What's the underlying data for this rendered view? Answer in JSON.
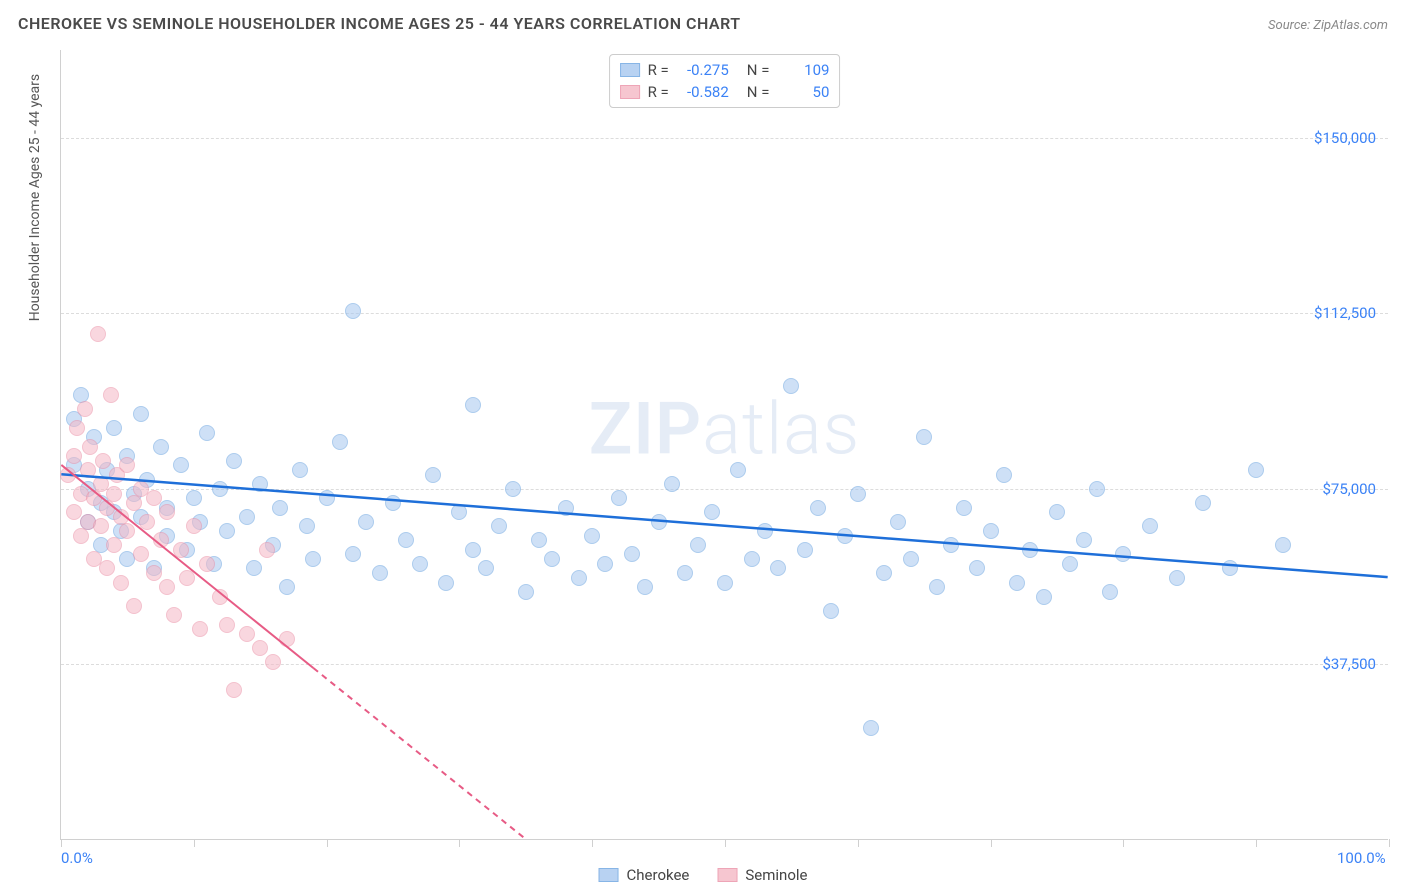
{
  "title": "CHEROKEE VS SEMINOLE HOUSEHOLDER INCOME AGES 25 - 44 YEARS CORRELATION CHART",
  "source": "Source: ZipAtlas.com",
  "watermark_prefix": "ZIP",
  "watermark_suffix": "atlas",
  "y_axis_label": "Householder Income Ages 25 - 44 years",
  "chart": {
    "type": "scatter",
    "xlim": [
      0,
      100
    ],
    "ylim": [
      0,
      168750
    ],
    "x_ticks": [
      0,
      10,
      20,
      30,
      40,
      50,
      60,
      70,
      80,
      90,
      100
    ],
    "x_tick_labels": {
      "0": "0.0%",
      "100": "100.0%"
    },
    "y_ticks": [
      37500,
      75000,
      112500,
      150000
    ],
    "y_tick_labels": [
      "$37,500",
      "$75,000",
      "$112,500",
      "$150,000"
    ],
    "y_grid": [
      37500,
      75000,
      112500,
      150000
    ],
    "background_color": "#ffffff",
    "grid_color": "#dcdcdc",
    "axis_color": "#d0d0d0",
    "tick_label_color": "#3b82f6",
    "bubble_radius": 8,
    "series": [
      {
        "name": "Cherokee",
        "fill": "#a7c7f0",
        "stroke": "#6aa3e0",
        "fill_opacity": 0.55,
        "stroke_opacity": 0.9,
        "r": "-0.275",
        "n": "109",
        "trend": {
          "x1": 0,
          "y1": 78000,
          "x2": 100,
          "y2": 56000,
          "color": "#1e6fd9",
          "width": 2.5,
          "dash_after_x": null
        },
        "points": [
          [
            1,
            90000
          ],
          [
            1,
            80000
          ],
          [
            1.5,
            95000
          ],
          [
            2,
            75000
          ],
          [
            2,
            68000
          ],
          [
            2.5,
            86000
          ],
          [
            3,
            72000
          ],
          [
            3,
            63000
          ],
          [
            3.5,
            79000
          ],
          [
            4,
            88000
          ],
          [
            4,
            70000
          ],
          [
            4.5,
            66000
          ],
          [
            5,
            82000
          ],
          [
            5,
            60000
          ],
          [
            5.5,
            74000
          ],
          [
            6,
            91000
          ],
          [
            6,
            69000
          ],
          [
            6.5,
            77000
          ],
          [
            7,
            58000
          ],
          [
            7.5,
            84000
          ],
          [
            8,
            71000
          ],
          [
            8,
            65000
          ],
          [
            9,
            80000
          ],
          [
            9.5,
            62000
          ],
          [
            10,
            73000
          ],
          [
            10.5,
            68000
          ],
          [
            11,
            87000
          ],
          [
            11.5,
            59000
          ],
          [
            12,
            75000
          ],
          [
            12.5,
            66000
          ],
          [
            13,
            81000
          ],
          [
            14,
            69000
          ],
          [
            14.5,
            58000
          ],
          [
            15,
            76000
          ],
          [
            16,
            63000
          ],
          [
            16.5,
            71000
          ],
          [
            17,
            54000
          ],
          [
            18,
            79000
          ],
          [
            18.5,
            67000
          ],
          [
            19,
            60000
          ],
          [
            20,
            73000
          ],
          [
            21,
            85000
          ],
          [
            22,
            61000
          ],
          [
            22,
            113000
          ],
          [
            23,
            68000
          ],
          [
            24,
            57000
          ],
          [
            25,
            72000
          ],
          [
            26,
            64000
          ],
          [
            27,
            59000
          ],
          [
            28,
            78000
          ],
          [
            29,
            55000
          ],
          [
            30,
            70000
          ],
          [
            31,
            62000
          ],
          [
            31,
            93000
          ],
          [
            32,
            58000
          ],
          [
            33,
            67000
          ],
          [
            34,
            75000
          ],
          [
            35,
            53000
          ],
          [
            36,
            64000
          ],
          [
            37,
            60000
          ],
          [
            38,
            71000
          ],
          [
            39,
            56000
          ],
          [
            40,
            65000
          ],
          [
            41,
            59000
          ],
          [
            42,
            73000
          ],
          [
            43,
            61000
          ],
          [
            44,
            54000
          ],
          [
            45,
            68000
          ],
          [
            46,
            76000
          ],
          [
            47,
            57000
          ],
          [
            48,
            63000
          ],
          [
            49,
            70000
          ],
          [
            50,
            55000
          ],
          [
            51,
            79000
          ],
          [
            52,
            60000
          ],
          [
            53,
            66000
          ],
          [
            54,
            58000
          ],
          [
            55,
            97000
          ],
          [
            56,
            62000
          ],
          [
            57,
            71000
          ],
          [
            58,
            49000
          ],
          [
            59,
            65000
          ],
          [
            60,
            74000
          ],
          [
            61,
            24000
          ],
          [
            62,
            57000
          ],
          [
            63,
            68000
          ],
          [
            64,
            60000
          ],
          [
            65,
            86000
          ],
          [
            66,
            54000
          ],
          [
            67,
            63000
          ],
          [
            68,
            71000
          ],
          [
            69,
            58000
          ],
          [
            70,
            66000
          ],
          [
            71,
            78000
          ],
          [
            72,
            55000
          ],
          [
            73,
            62000
          ],
          [
            74,
            52000
          ],
          [
            75,
            70000
          ],
          [
            76,
            59000
          ],
          [
            77,
            64000
          ],
          [
            78,
            75000
          ],
          [
            79,
            53000
          ],
          [
            80,
            61000
          ],
          [
            82,
            67000
          ],
          [
            84,
            56000
          ],
          [
            86,
            72000
          ],
          [
            88,
            58000
          ],
          [
            90,
            79000
          ],
          [
            92,
            63000
          ]
        ]
      },
      {
        "name": "Seminole",
        "fill": "#f5b8c5",
        "stroke": "#eb8fa6",
        "fill_opacity": 0.55,
        "stroke_opacity": 0.9,
        "r": "-0.582",
        "n": "50",
        "trend": {
          "x1": 0,
          "y1": 80000,
          "x2": 35,
          "y2": 0,
          "color": "#e75b85",
          "width": 2,
          "dash_after_x": 19
        },
        "points": [
          [
            0.5,
            78000
          ],
          [
            1,
            82000
          ],
          [
            1,
            70000
          ],
          [
            1.2,
            88000
          ],
          [
            1.5,
            74000
          ],
          [
            1.5,
            65000
          ],
          [
            1.8,
            92000
          ],
          [
            2,
            79000
          ],
          [
            2,
            68000
          ],
          [
            2.2,
            84000
          ],
          [
            2.5,
            73000
          ],
          [
            2.5,
            60000
          ],
          [
            2.8,
            108000
          ],
          [
            3,
            76000
          ],
          [
            3,
            67000
          ],
          [
            3.2,
            81000
          ],
          [
            3.5,
            71000
          ],
          [
            3.5,
            58000
          ],
          [
            3.8,
            95000
          ],
          [
            4,
            74000
          ],
          [
            4,
            63000
          ],
          [
            4.2,
            78000
          ],
          [
            4.5,
            69000
          ],
          [
            4.5,
            55000
          ],
          [
            5,
            80000
          ],
          [
            5,
            66000
          ],
          [
            5.5,
            72000
          ],
          [
            5.5,
            50000
          ],
          [
            6,
            75000
          ],
          [
            6,
            61000
          ],
          [
            6.5,
            68000
          ],
          [
            7,
            57000
          ],
          [
            7,
            73000
          ],
          [
            7.5,
            64000
          ],
          [
            8,
            54000
          ],
          [
            8,
            70000
          ],
          [
            8.5,
            48000
          ],
          [
            9,
            62000
          ],
          [
            9.5,
            56000
          ],
          [
            10,
            67000
          ],
          [
            10.5,
            45000
          ],
          [
            11,
            59000
          ],
          [
            12,
            52000
          ],
          [
            12.5,
            46000
          ],
          [
            13,
            32000
          ],
          [
            14,
            44000
          ],
          [
            15,
            41000
          ],
          [
            15.5,
            62000
          ],
          [
            16,
            38000
          ],
          [
            17,
            43000
          ]
        ]
      }
    ]
  },
  "stat_box": {
    "r_label": "R =",
    "n_label": "N ="
  },
  "legend": {
    "items": [
      "Cherokee",
      "Seminole"
    ]
  }
}
